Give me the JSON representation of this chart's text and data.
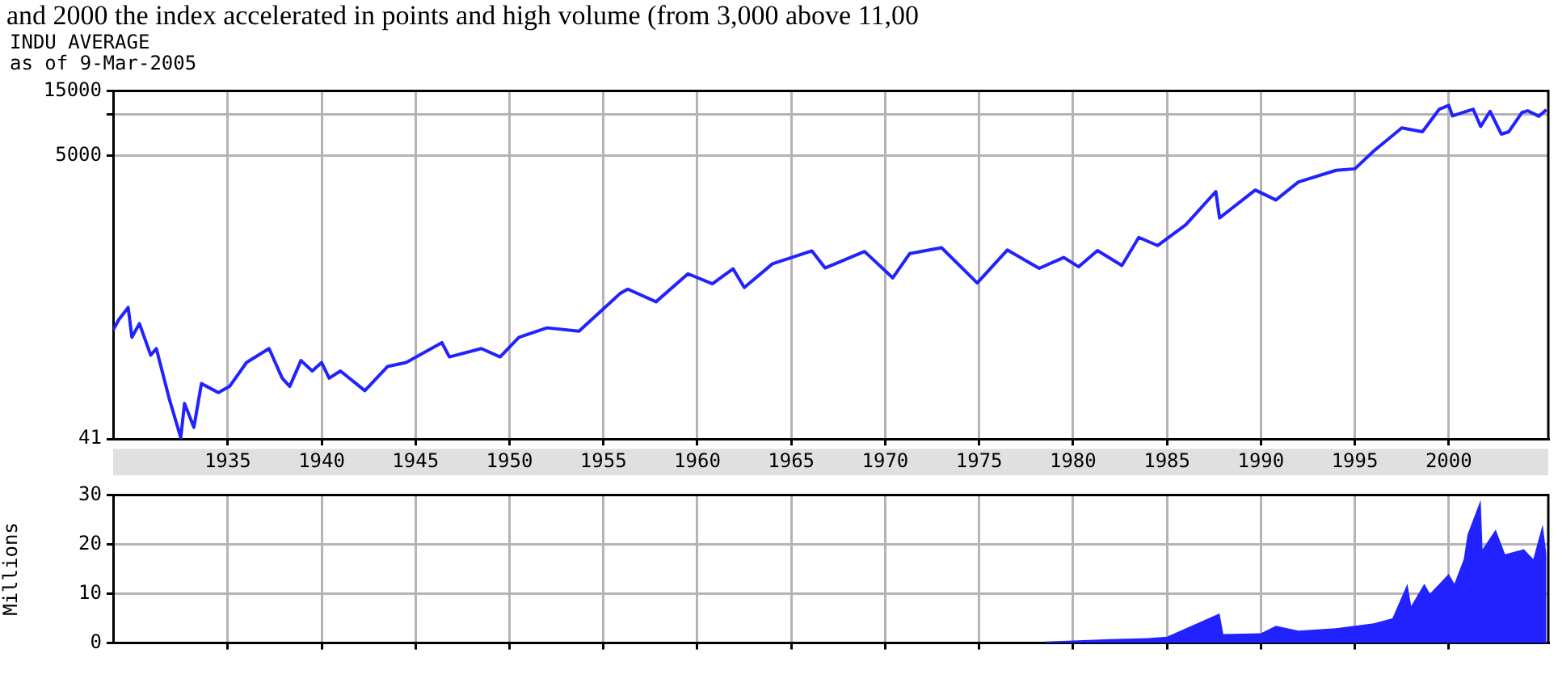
{
  "chart_data": [
    {
      "type": "line",
      "title": "INDU AVERAGE",
      "subtitle": "as of 9-Mar-2005",
      "annotations": [
        "and 2000 the index accelerated in points and high volume (from 3,000 above 11,00"
      ],
      "log": "y",
      "grid": true,
      "legend": false,
      "marker": "none",
      "xlim": [
        1928.9,
        2005.3
      ],
      "xticks": [
        1935,
        1940,
        1945,
        1950,
        1955,
        1960,
        1965,
        1970,
        1975,
        1980,
        1985,
        1990,
        1995,
        2000
      ],
      "ylim": [
        41,
        15000
      ],
      "yticks": [
        41,
        5000,
        {
          "value": 10000,
          "label": null
        },
        15000
      ],
      "series": [
        {
          "color": "#2222ff",
          "x": [
            1928.9,
            1929.2,
            1929.7,
            1929.9,
            1930.3,
            1930.9,
            1931.2,
            1931.9,
            1932.5,
            1932.7,
            1933.2,
            1933.6,
            1934.5,
            1935.1,
            1936,
            1937.2,
            1937.9,
            1938.3,
            1938.9,
            1939.5,
            1940,
            1940.4,
            1941,
            1942.3,
            1943.5,
            1944.5,
            1946.4,
            1946.8,
            1948.5,
            1949.5,
            1950.5,
            1952,
            1953.7,
            1955.9,
            1956.3,
            1957.8,
            1959.5,
            1960.8,
            1961.9,
            1962.5,
            1964,
            1966.1,
            1966.8,
            1968.9,
            1970.4,
            1971.3,
            1973,
            1974.9,
            1976.5,
            1978.2,
            1979.5,
            1980.3,
            1981.3,
            1982.6,
            1983.5,
            1984.5,
            1986,
            1987.6,
            1987.8,
            1989.7,
            1990.8,
            1992,
            1994,
            1995,
            1996,
            1997.5,
            1998.6,
            1999.5,
            2000,
            2000.2,
            2001.3,
            2001.7,
            2002.2,
            2002.8,
            2003.2,
            2003.9,
            2004.2,
            2004.8,
            2005.2
          ],
          "values": [
            260,
            310,
            381,
            230,
            290,
            170,
            190,
            80,
            42,
            75,
            50,
            105,
            90,
            100,
            150,
            190,
            115,
            100,
            155,
            130,
            150,
            115,
            130,
            93,
            140,
            150,
            210,
            165,
            190,
            165,
            230,
            270,
            255,
            485,
            520,
            420,
            675,
            570,
            735,
            535,
            800,
            995,
            745,
            985,
            630,
            950,
            1050,
            577,
            1010,
            740,
            890,
            760,
            1000,
            777,
            1250,
            1090,
            1550,
            2720,
            1740,
            2790,
            2360,
            3200,
            3900,
            4000,
            5400,
            8000,
            7500,
            11000,
            11720,
            9800,
            11000,
            8200,
            10600,
            7200,
            7500,
            10400,
            10700,
            9750,
            10900
          ]
        }
      ]
    },
    {
      "type": "area",
      "ylabel": "Millions",
      "grid": true,
      "legend": false,
      "marker": "none",
      "tick_labels": "y",
      "xlim": [
        1928.9,
        2005.3
      ],
      "xticks": [
        1935,
        1940,
        1945,
        1950,
        1955,
        1960,
        1965,
        1970,
        1975,
        1980,
        1985,
        1990,
        1995,
        2000
      ],
      "ylim": [
        0,
        30
      ],
      "yticks": [
        0,
        10,
        20,
        30
      ],
      "series": [
        {
          "color": "#2222ff",
          "x": [
            1978.5,
            1980,
            1982,
            1984,
            1985,
            1987.8,
            1988,
            1990,
            1990.8,
            1992,
            1994,
            1996,
            1997,
            1997.8,
            1998,
            1998.7,
            1999,
            2000,
            2000.3,
            2000.8,
            2001,
            2001.7,
            2001.8,
            2002.5,
            2003,
            2004,
            2004.5,
            2005,
            2005.2
          ],
          "values": [
            0.3,
            0.5,
            0.8,
            1,
            1.3,
            6,
            1.8,
            2,
            3.5,
            2.5,
            3,
            4,
            5,
            12,
            7.5,
            12,
            10,
            14,
            12,
            17,
            22,
            29,
            19,
            23,
            18,
            19,
            17,
            24,
            18
          ]
        }
      ]
    }
  ]
}
